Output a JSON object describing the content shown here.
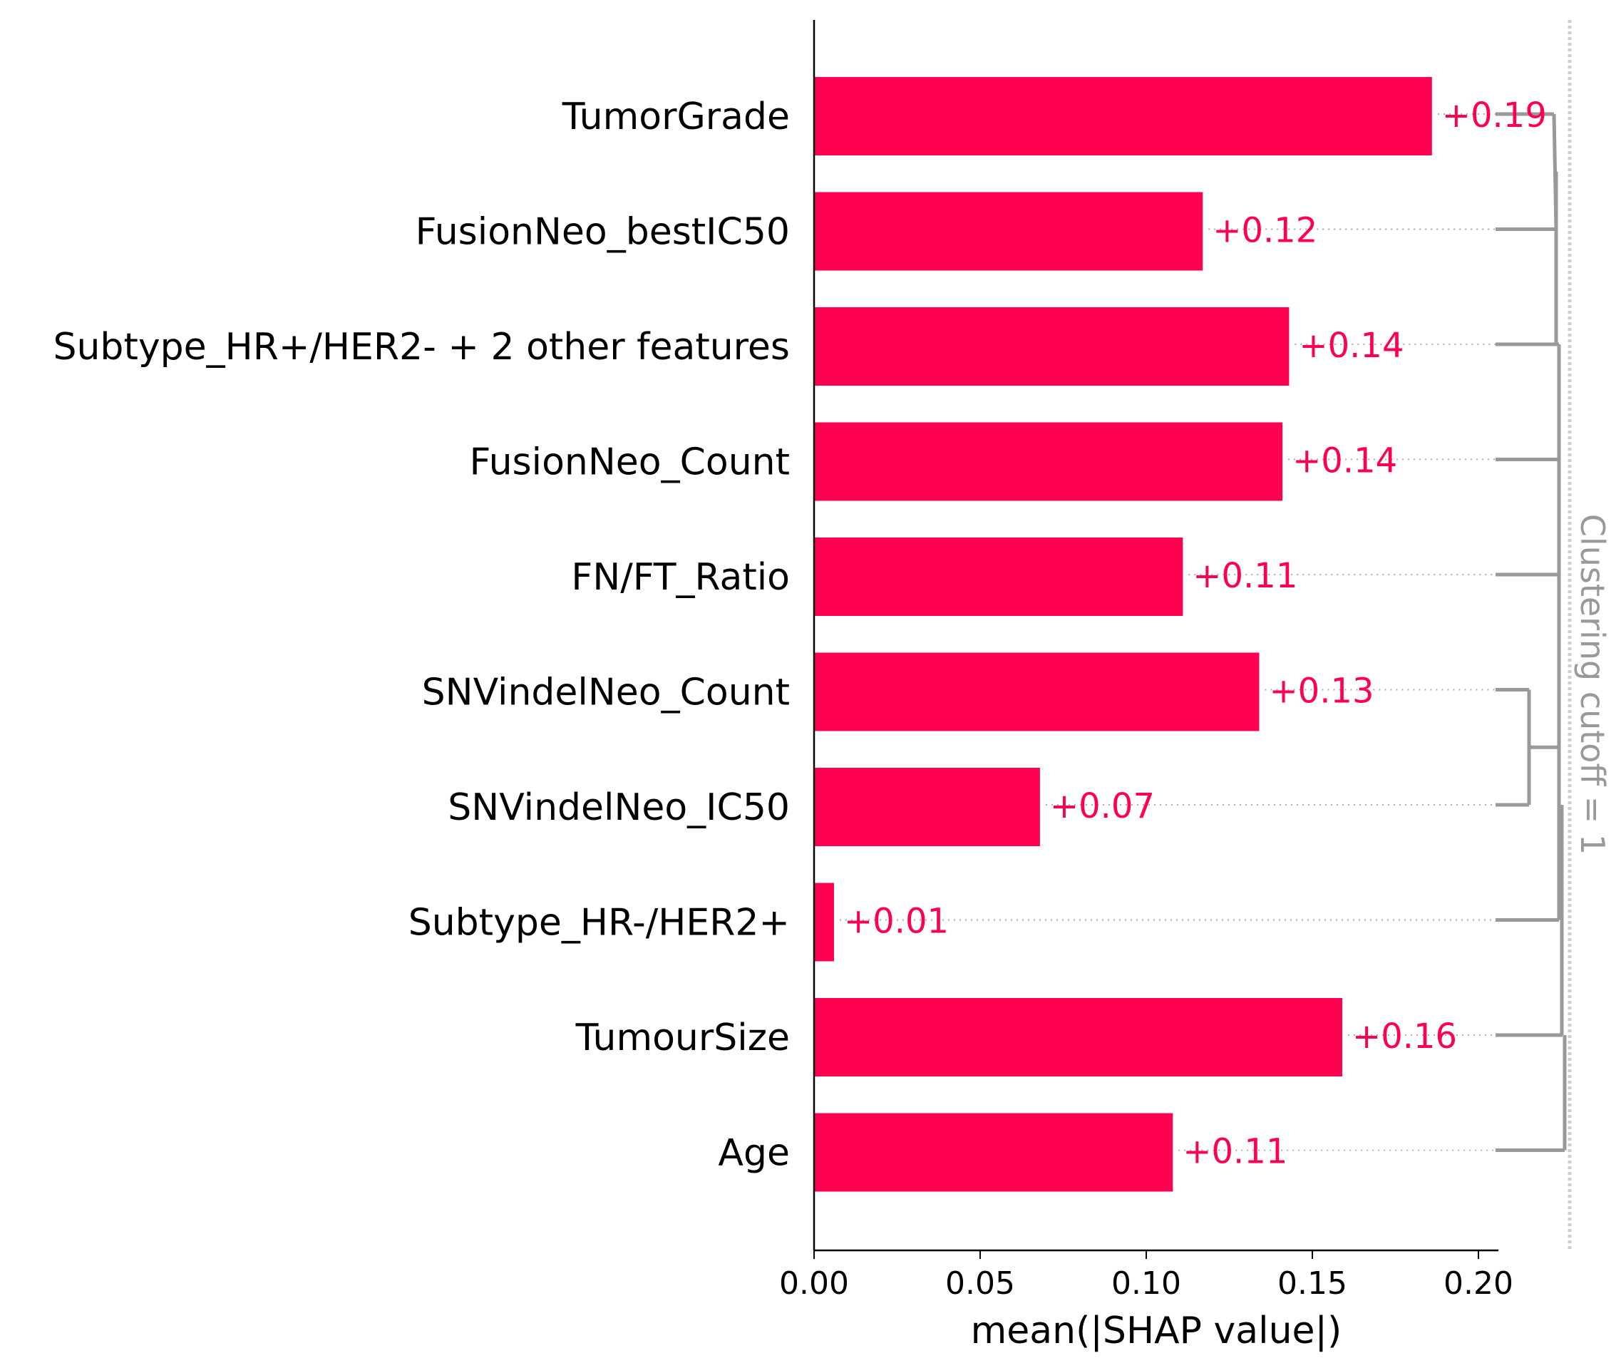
{
  "chart_data": {
    "type": "bar",
    "orientation": "horizontal",
    "categories": [
      "TumorGrade",
      "FusionNeo_bestIC50",
      "Subtype_HR+/HER2- + 2 other features",
      "FusionNeo_Count",
      "FN/FT_Ratio",
      "SNVindelNeo_Count",
      "SNVindelNeo_IC50",
      "Subtype_HR-/HER2+",
      "TumourSize",
      "Age"
    ],
    "values": [
      0.186,
      0.117,
      0.143,
      0.141,
      0.111,
      0.134,
      0.068,
      0.006,
      0.159,
      0.108
    ],
    "value_labels": [
      "+0.19",
      "+0.12",
      "+0.14",
      "+0.14",
      "+0.11",
      "+0.13",
      "+0.07",
      "+0.01",
      "+0.16",
      "+0.11"
    ],
    "xlabel": "mean(|SHAP value|)",
    "xlim": [
      0,
      0.206
    ],
    "xticks": [
      "0.00",
      "0.05",
      "0.10",
      "0.15",
      "0.20"
    ],
    "xtick_values": [
      0,
      0.05,
      0.1,
      0.15,
      0.2
    ],
    "cutoff_label": "Clustering cutoff = 1",
    "bar_color": "#ff0051",
    "label_color": "#ff0051",
    "dendrogram_color": "#999999"
  }
}
